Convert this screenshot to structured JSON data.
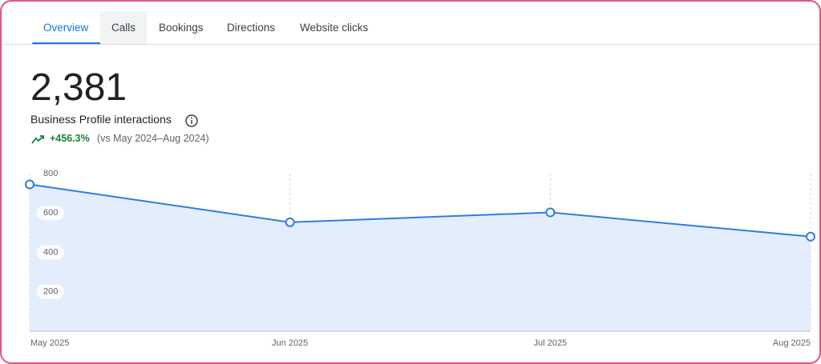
{
  "tabs": [
    "Overview",
    "Calls",
    "Bookings",
    "Directions",
    "Website clicks"
  ],
  "metric": {
    "value": "2,381",
    "label": "Business Profile interactions",
    "change": "+456.3%",
    "comparison": "(vs May 2024–Aug 2024)"
  },
  "chart_data": {
    "type": "area",
    "categories": [
      "May 2025",
      "Jun 2025",
      "Jul 2025",
      "Aug 2025"
    ],
    "series": [
      {
        "color": "#2f7de1",
        "values": [
          745,
          553,
          603,
          480
        ]
      }
    ],
    "fill_color": "#e3edfc",
    "ylim": [
      0,
      800
    ],
    "yticks": [
      200,
      400,
      600,
      800
    ],
    "grid": true
  }
}
